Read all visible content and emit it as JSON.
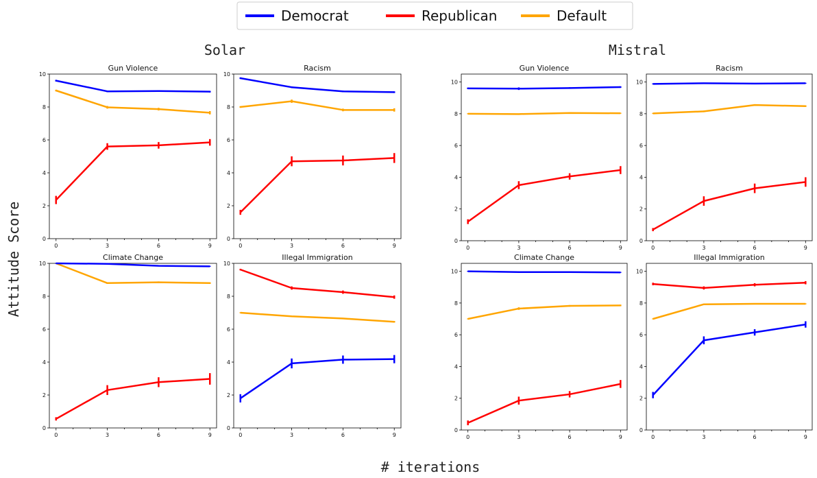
{
  "colors": {
    "Democrat": "#0000ff",
    "Republican": "#ff0000",
    "Default": "#ffa500"
  },
  "legend": {
    "placement": "top-center",
    "entries": [
      {
        "name": "Democrat",
        "color": "#0000ff"
      },
      {
        "name": "Republican",
        "color": "#ff0000"
      },
      {
        "name": "Default",
        "color": "#ffa500"
      }
    ]
  },
  "ylabel": "Attitude Score",
  "xlabel": "# iterations",
  "groups": [
    {
      "title": "Solar"
    },
    {
      "title": "Mistral"
    }
  ],
  "chart_data": [
    {
      "type": "line",
      "group": "Solar",
      "title": "Gun Violence",
      "x": [
        0,
        3,
        6,
        9
      ],
      "ylim": [
        0,
        10
      ],
      "grid": false,
      "series": [
        {
          "name": "Democrat",
          "values": [
            9.6,
            8.95,
            8.97,
            8.93
          ],
          "err": [
            0.05,
            0.05,
            0.05,
            0.05
          ]
        },
        {
          "name": "Republican",
          "values": [
            2.35,
            5.6,
            5.67,
            5.85
          ],
          "err": [
            0.25,
            0.2,
            0.2,
            0.2
          ]
        },
        {
          "name": "Default",
          "values": [
            9.0,
            7.98,
            7.87,
            7.65
          ],
          "err": [
            0.05,
            0.08,
            0.08,
            0.1
          ]
        }
      ]
    },
    {
      "type": "line",
      "group": "Solar",
      "title": "Racism",
      "x": [
        0,
        3,
        6,
        9
      ],
      "ylim": [
        0,
        10
      ],
      "grid": false,
      "series": [
        {
          "name": "Democrat",
          "values": [
            9.75,
            9.2,
            8.95,
            8.9
          ],
          "err": [
            0.05,
            0.05,
            0.05,
            0.05
          ]
        },
        {
          "name": "Republican",
          "values": [
            1.6,
            4.7,
            4.75,
            4.9
          ],
          "err": [
            0.15,
            0.3,
            0.3,
            0.3
          ]
        },
        {
          "name": "Default",
          "values": [
            8.0,
            8.35,
            7.82,
            7.82
          ],
          "err": [
            0.05,
            0.1,
            0.08,
            0.1
          ]
        }
      ]
    },
    {
      "type": "line",
      "group": "Solar",
      "title": "Climate Change",
      "x": [
        0,
        3,
        6,
        9
      ],
      "ylim": [
        0,
        10
      ],
      "grid": false,
      "series": [
        {
          "name": "Democrat",
          "values": [
            10.0,
            9.97,
            9.85,
            9.82
          ],
          "err": [
            0.03,
            0.03,
            0.03,
            0.03
          ]
        },
        {
          "name": "Republican",
          "values": [
            0.55,
            2.3,
            2.78,
            2.98
          ],
          "err": [
            0.1,
            0.3,
            0.3,
            0.35
          ]
        },
        {
          "name": "Default",
          "values": [
            10.0,
            8.8,
            8.85,
            8.8
          ],
          "err": [
            0.03,
            0.05,
            0.05,
            0.05
          ]
        }
      ]
    },
    {
      "type": "line",
      "group": "Solar",
      "title": "Illegal Immigration",
      "x": [
        0,
        3,
        6,
        9
      ],
      "ylim": [
        0,
        10
      ],
      "grid": false,
      "series": [
        {
          "name": "Democrat",
          "values": [
            1.8,
            3.92,
            4.15,
            4.18
          ],
          "err": [
            0.25,
            0.3,
            0.25,
            0.25
          ]
        },
        {
          "name": "Republican",
          "values": [
            9.62,
            8.5,
            8.25,
            7.95
          ],
          "err": [
            0.05,
            0.1,
            0.1,
            0.1
          ]
        },
        {
          "name": "Default",
          "values": [
            7.0,
            6.78,
            6.65,
            6.45
          ],
          "err": [
            0.03,
            0.03,
            0.03,
            0.05
          ]
        }
      ]
    },
    {
      "type": "line",
      "group": "Mistral",
      "title": "Gun Violence",
      "x": [
        0,
        3,
        6,
        9
      ],
      "ylim": [
        0,
        10.5
      ],
      "grid": false,
      "series": [
        {
          "name": "Democrat",
          "values": [
            9.6,
            9.58,
            9.62,
            9.68
          ],
          "err": [
            0.05,
            0.08,
            0.05,
            0.05
          ]
        },
        {
          "name": "Republican",
          "values": [
            1.2,
            3.5,
            4.05,
            4.45
          ],
          "err": [
            0.15,
            0.25,
            0.2,
            0.25
          ]
        },
        {
          "name": "Default",
          "values": [
            8.0,
            7.98,
            8.05,
            8.03
          ],
          "err": [
            0.03,
            0.03,
            0.03,
            0.03
          ]
        }
      ]
    },
    {
      "type": "line",
      "group": "Mistral",
      "title": "Racism",
      "x": [
        0,
        3,
        6,
        9
      ],
      "ylim": [
        0,
        10.5
      ],
      "grid": false,
      "series": [
        {
          "name": "Democrat",
          "values": [
            9.88,
            9.92,
            9.9,
            9.92
          ],
          "err": [
            0.03,
            0.03,
            0.03,
            0.03
          ]
        },
        {
          "name": "Republican",
          "values": [
            0.7,
            2.5,
            3.3,
            3.7
          ],
          "err": [
            0.1,
            0.3,
            0.3,
            0.3
          ]
        },
        {
          "name": "Default",
          "values": [
            8.02,
            8.15,
            8.55,
            8.48
          ],
          "err": [
            0.03,
            0.05,
            0.05,
            0.05
          ]
        }
      ]
    },
    {
      "type": "line",
      "group": "Mistral",
      "title": "Climate Change",
      "x": [
        0,
        3,
        6,
        9
      ],
      "ylim": [
        0,
        10.5
      ],
      "grid": false,
      "series": [
        {
          "name": "Democrat",
          "values": [
            10.0,
            9.95,
            9.95,
            9.93
          ],
          "err": [
            0.03,
            0.03,
            0.03,
            0.03
          ]
        },
        {
          "name": "Republican",
          "values": [
            0.45,
            1.85,
            2.25,
            2.9
          ],
          "err": [
            0.15,
            0.25,
            0.2,
            0.25
          ]
        },
        {
          "name": "Default",
          "values": [
            7.0,
            7.65,
            7.82,
            7.85
          ],
          "err": [
            0.03,
            0.08,
            0.05,
            0.05
          ]
        }
      ]
    },
    {
      "type": "line",
      "group": "Mistral",
      "title": "Illegal Immigration",
      "x": [
        0,
        3,
        6,
        9
      ],
      "ylim": [
        0,
        10.5
      ],
      "grid": false,
      "series": [
        {
          "name": "Democrat",
          "values": [
            2.2,
            5.65,
            6.15,
            6.65
          ],
          "err": [
            0.2,
            0.25,
            0.2,
            0.2
          ]
        },
        {
          "name": "Republican",
          "values": [
            9.2,
            8.95,
            9.15,
            9.28
          ],
          "err": [
            0.08,
            0.1,
            0.1,
            0.1
          ]
        },
        {
          "name": "Default",
          "values": [
            7.0,
            7.92,
            7.95,
            7.95
          ],
          "err": [
            0.03,
            0.03,
            0.03,
            0.03
          ]
        }
      ]
    }
  ]
}
